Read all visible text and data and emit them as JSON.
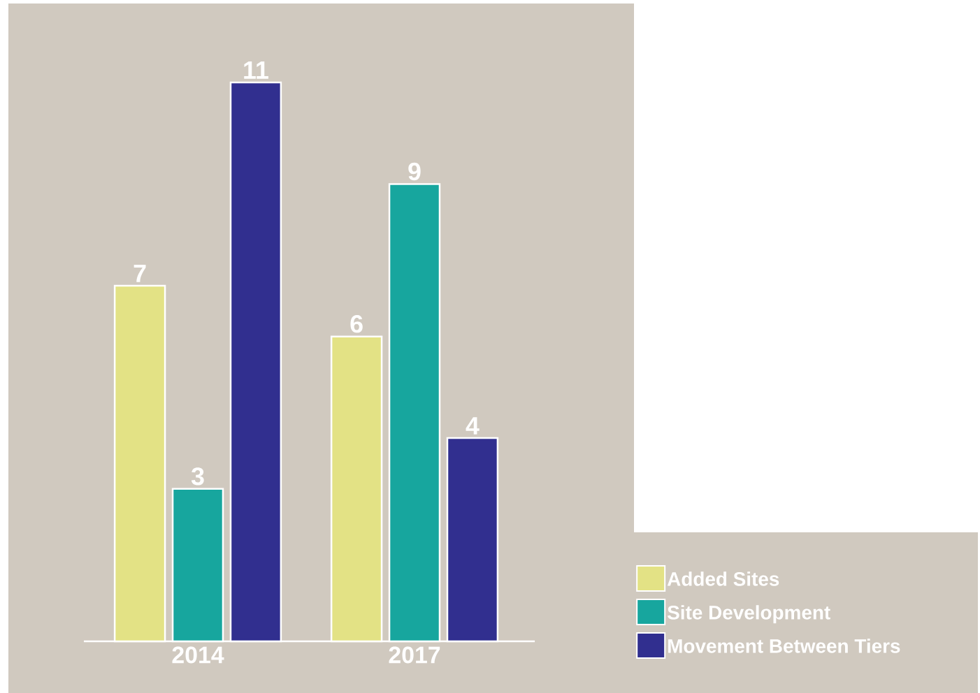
{
  "chart_data": {
    "type": "bar",
    "categories": [
      "2014",
      "2017"
    ],
    "series": [
      {
        "name": "Added Sites",
        "color": "#e3e285",
        "values": [
          7,
          6
        ]
      },
      {
        "name": "Site Development",
        "color": "#17a69e",
        "values": [
          3,
          9
        ]
      },
      {
        "name": "Movement Between Tiers",
        "color": "#312f8f",
        "values": [
          11,
          4
        ]
      }
    ],
    "data_labels": true,
    "legend": "bottom right"
  }
}
